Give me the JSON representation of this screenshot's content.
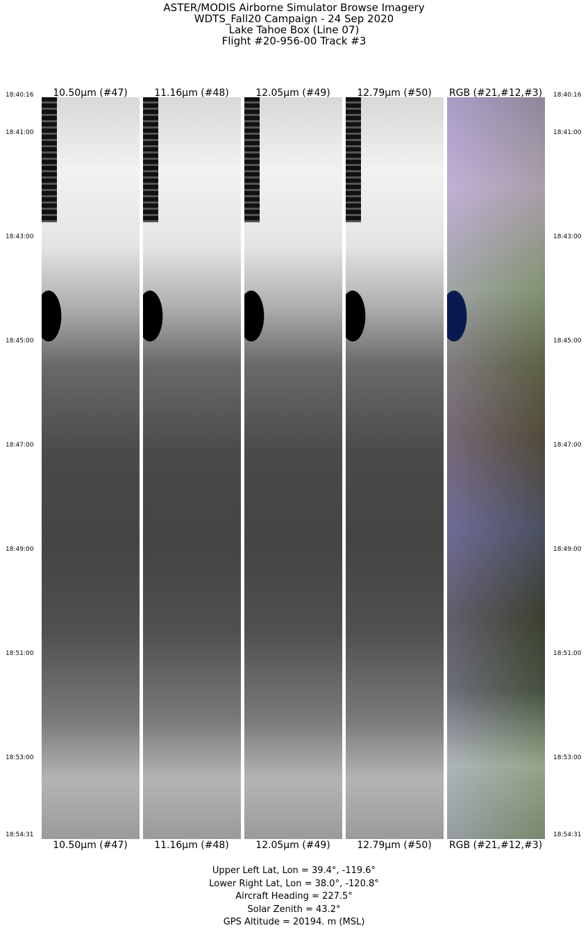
{
  "title": {
    "lines": [
      "ASTER/MODIS Airborne Simulator Browse Imagery",
      "WDTS_Fall20 Campaign - 24 Sep 2020",
      "Lake Tahoe Box (Line 07)",
      "Flight #20-956-00 Track #3"
    ]
  },
  "panels": [
    {
      "label": "10.50µm (#47)",
      "type": "gray"
    },
    {
      "label": "11.16µm (#48)",
      "type": "gray"
    },
    {
      "label": "12.05µm (#49)",
      "type": "gray"
    },
    {
      "label": "12.79µm (#50)",
      "type": "gray"
    },
    {
      "label": "RGB (#21,#12,#3)",
      "type": "rgb"
    }
  ],
  "times": [
    "18:40:16",
    "18:41:00",
    "18:43:00",
    "18:45:00",
    "18:47:00",
    "18:49:00",
    "18:51:00",
    "18:53:00",
    "18:54:31"
  ],
  "footer": {
    "lines": [
      "Upper Left Lat, Lon =   39.4°, -119.6°",
      "Lower Right Lat, Lon =   38.0°, -120.8°",
      "Aircraft Heading =  227.5°",
      "Solar Zenith =   43.2°",
      "GPS Altitude =  20194. m (MSL)"
    ]
  }
}
